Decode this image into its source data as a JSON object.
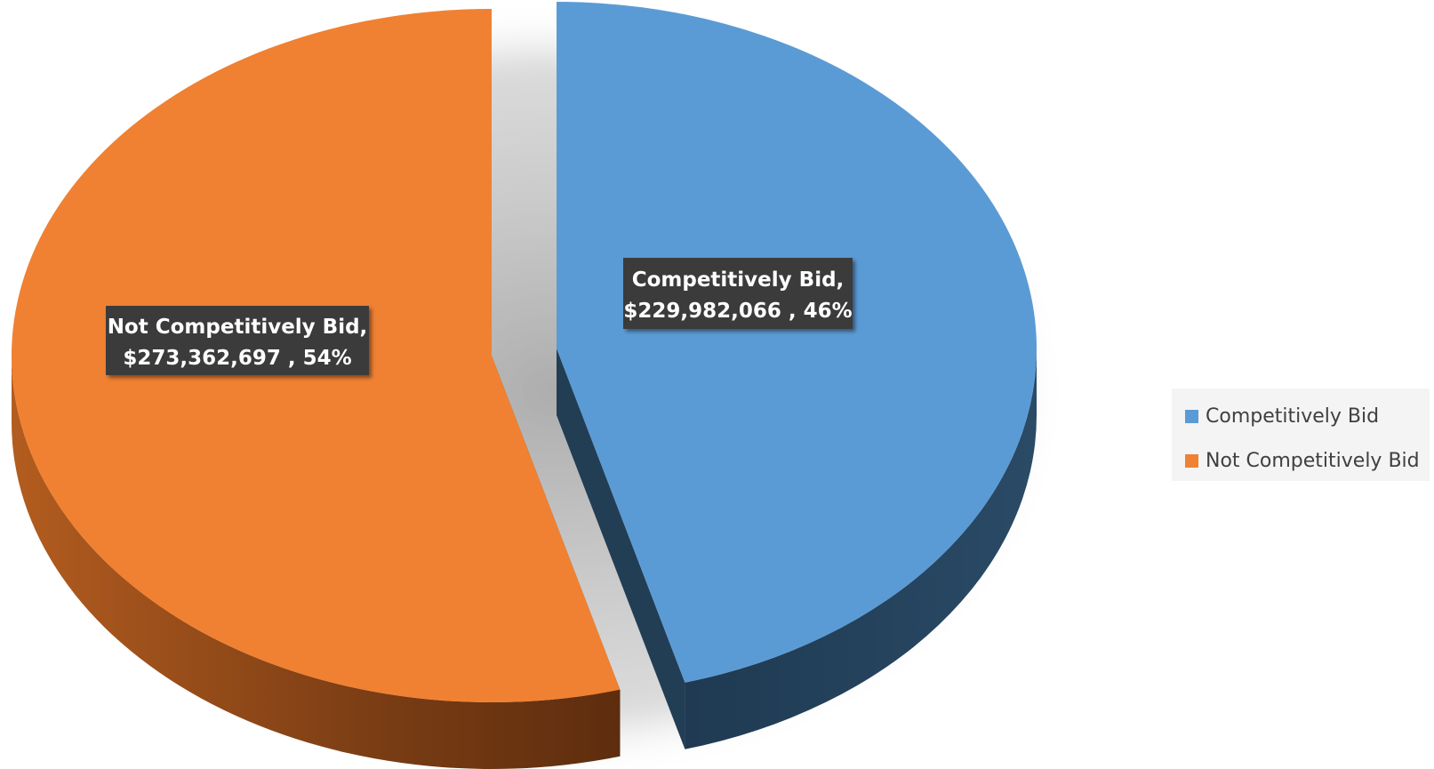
{
  "chart_data": {
    "type": "pie",
    "style": "3d-exploded",
    "slices": [
      {
        "name": "Competitively Bid",
        "value": 229982066,
        "percent": 46,
        "color": "#5b9bd5",
        "side_color": "#223e55",
        "label_line1": "Competitively Bid,",
        "label_line2": "$229,982,066 , 46%",
        "exploded": true
      },
      {
        "name": "Not Competitively Bid",
        "value": 273362697,
        "percent": 54,
        "color": "#f08132",
        "side_color": "#7a3d14",
        "label_line1": "Not Competitively Bid,",
        "label_line2": "$273,362,697 , 54%",
        "exploded": false
      }
    ],
    "legend": {
      "placement": "right",
      "entries": [
        "Competitively Bid",
        "Not Competitively Bid"
      ]
    },
    "data_label_background": "#3a3a3a"
  }
}
